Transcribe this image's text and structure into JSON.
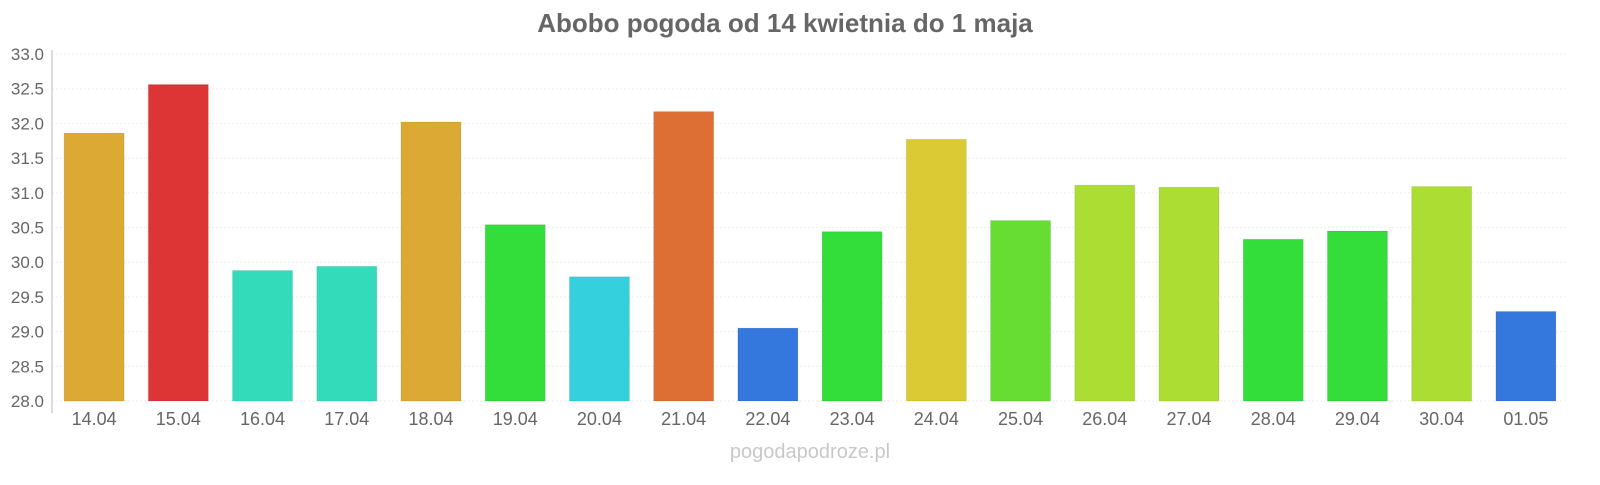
{
  "chart_data": {
    "type": "bar",
    "title": "Abobo pogoda od 14 kwietnia do 1 maja",
    "xlabel": "",
    "ylabel": "",
    "ylim": [
      28.0,
      33.0
    ],
    "yticks": [
      "28.0",
      "28.5",
      "29.0",
      "29.5",
      "30.0",
      "30.5",
      "31.0",
      "31.5",
      "32.0",
      "32.5",
      "33.0"
    ],
    "grid": true,
    "categories": [
      "14.04",
      "15.04",
      "16.04",
      "17.04",
      "18.04",
      "19.04",
      "20.04",
      "21.04",
      "22.04",
      "23.04",
      "24.04",
      "25.04",
      "26.04",
      "27.04",
      "28.04",
      "29.04",
      "30.04",
      "01.05"
    ],
    "values": [
      31.86,
      32.56,
      29.88,
      29.94,
      32.02,
      30.54,
      29.79,
      32.17,
      29.05,
      30.44,
      31.77,
      30.6,
      31.11,
      31.08,
      30.33,
      30.45,
      31.09,
      29.29
    ],
    "colors": [
      "#dba934",
      "#dd3535",
      "#34dbbb",
      "#34dbbb",
      "#dba934",
      "#33dd3a",
      "#34d0dd",
      "#dd6f34",
      "#3477dd",
      "#33dd3a",
      "#dbca34",
      "#67dd33",
      "#acdd33",
      "#acdd33",
      "#33dd3a",
      "#33dd3a",
      "#acdd33",
      "#3477dd"
    ]
  },
  "watermark": "pogodapodroze.pl"
}
